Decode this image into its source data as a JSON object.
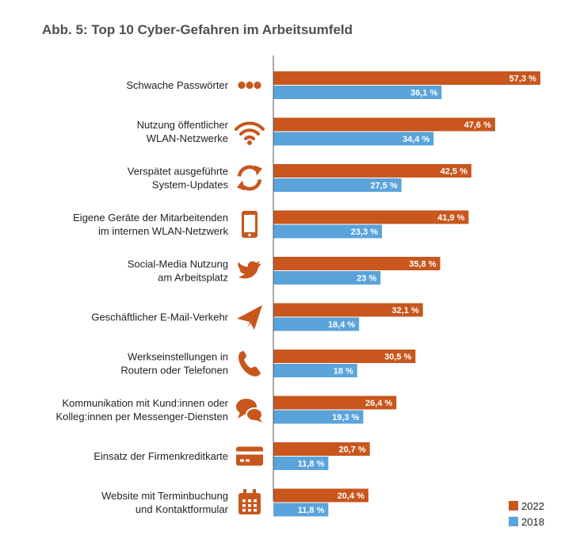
{
  "title": "Abb. 5: Top 10 Cyber-Gefahren im Arbeitsumfeld",
  "colors": {
    "s2022": "#c8561d",
    "s2018": "#5aa3db",
    "icon": "#c8561d",
    "axis": "#555555"
  },
  "chart_data": {
    "type": "bar",
    "orientation": "horizontal",
    "title": "Abb. 5: Top 10 Cyber-Gefahren im Arbeitsumfeld",
    "categories": [
      [
        "Schwache Passwörter"
      ],
      [
        "Nutzung öffentlicher",
        "WLAN-Netzwerke"
      ],
      [
        "Verspätet ausgeführte",
        "System-Updates"
      ],
      [
        "Eigene Geräte der Mitarbeitenden",
        "im internen WLAN-Netzwerk"
      ],
      [
        "Social-Media Nutzung",
        "am Arbeitsplatz"
      ],
      [
        "Geschäftlicher E-Mail-Verkehr"
      ],
      [
        "Werkseinstellungen in",
        "Routern oder Telefonen"
      ],
      [
        "Kommunikation mit Kund:innen oder",
        "Kolleg:innen per Messenger-Diensten"
      ],
      [
        "Einsatz der Firmenkreditkarte"
      ],
      [
        "Website mit Terminbuchung",
        "und Kontaktformular"
      ]
    ],
    "icons": [
      "dots-icon",
      "wifi-icon",
      "refresh-icon",
      "smartphone-icon",
      "twitter-icon",
      "paper-plane-icon",
      "phone-icon",
      "chat-bubbles-icon",
      "credit-card-icon",
      "calendar-icon"
    ],
    "series": [
      {
        "name": "2022",
        "values": [
          57.3,
          47.6,
          42.5,
          41.9,
          35.8,
          32.1,
          30.5,
          26.4,
          20.7,
          20.4
        ],
        "labels": [
          "57,3 %",
          "47,6 %",
          "42,5 %",
          "41,9 %",
          "35,8 %",
          "32,1 %",
          "30,5 %",
          "26,4 %",
          "20,7 %",
          "20,4 %"
        ]
      },
      {
        "name": "2018",
        "values": [
          36.1,
          34.4,
          27.5,
          23.3,
          23,
          18.4,
          18,
          19.3,
          11.8,
          11.8
        ],
        "labels": [
          "36,1 %",
          "34,4 %",
          "27,5 %",
          "23,3 %",
          "23 %",
          "18,4 %",
          "18 %",
          "19,3 %",
          "11,8 %",
          "11,8 %"
        ]
      }
    ],
    "xlim": [
      0,
      60
    ],
    "grid": false,
    "legend_position": "bottom-right"
  }
}
